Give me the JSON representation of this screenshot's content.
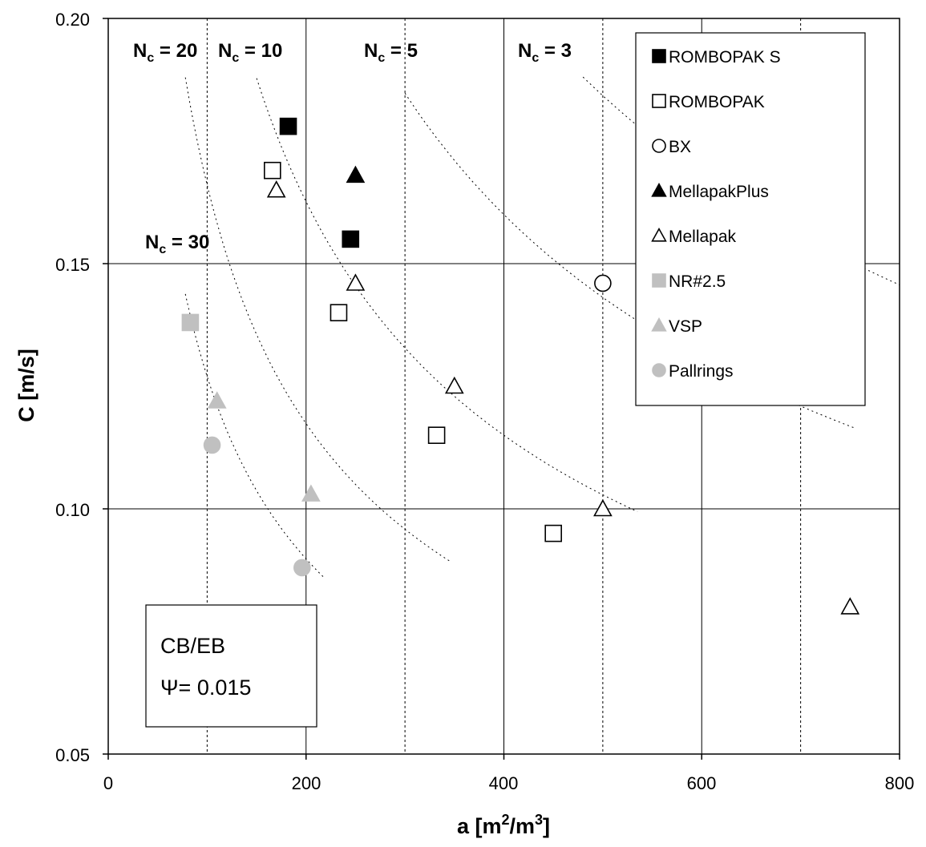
{
  "chart_data": {
    "type": "scatter",
    "xlabel": "a [m2/m3]",
    "ylabel": "C [m/s]",
    "xlim": [
      0,
      800
    ],
    "ylim": [
      0.05,
      0.2
    ],
    "x_ticks": [
      "0",
      "200",
      "400",
      "600",
      "800"
    ],
    "y_ticks": [
      "0.05",
      "0.10",
      "0.15",
      "0.20"
    ],
    "grid": "major gridlines at x=200,400,600 and y=0.10,0.15",
    "legend_position": "top-right",
    "series": [
      {
        "name": "ROMBOPAK S",
        "marker": "square",
        "filled": true,
        "color": "#000000",
        "points": [
          [
            182,
            0.178
          ],
          [
            245,
            0.155
          ]
        ]
      },
      {
        "name": "ROMBOPAK",
        "marker": "square",
        "filled": false,
        "color": "#000000",
        "points": [
          [
            166,
            0.169
          ],
          [
            233,
            0.14
          ],
          [
            332,
            0.115
          ],
          [
            450,
            0.095
          ]
        ]
      },
      {
        "name": "BX",
        "marker": "circle",
        "filled": false,
        "color": "#000000",
        "points": [
          [
            500,
            0.146
          ]
        ]
      },
      {
        "name": "MellapakPlus",
        "marker": "triangle",
        "filled": true,
        "color": "#000000",
        "points": [
          [
            250,
            0.168
          ]
        ]
      },
      {
        "name": "Mellapak",
        "marker": "triangle",
        "filled": false,
        "color": "#000000",
        "points": [
          [
            170,
            0.165
          ],
          [
            250,
            0.146
          ],
          [
            350,
            0.125
          ],
          [
            500,
            0.1
          ],
          [
            750,
            0.08
          ]
        ]
      },
      {
        "name": "NR#2.5",
        "marker": "square",
        "filled": true,
        "color": "#c0c0c0",
        "points": [
          [
            83,
            0.138
          ]
        ]
      },
      {
        "name": "VSP",
        "marker": "triangle",
        "filled": true,
        "color": "#c0c0c0",
        "points": [
          [
            110,
            0.122
          ],
          [
            205,
            0.103
          ]
        ]
      },
      {
        "name": "Pallrings",
        "marker": "circle",
        "filled": true,
        "color": "#c0c0c0",
        "points": [
          [
            105,
            0.113
          ],
          [
            196,
            0.088
          ]
        ]
      }
    ],
    "vertical_dotted_lines_x": [
      100,
      300,
      500,
      700
    ],
    "nc_curves": [
      {
        "label": "Nc = 30",
        "x_range": [
          78,
          218
        ]
      },
      {
        "label": "Nc = 20",
        "x_range": [
          78,
          345
        ]
      },
      {
        "label": "Nc = 10",
        "x_range": [
          150,
          535
        ]
      },
      {
        "label": "Nc = 5",
        "x_range": [
          300,
          755
        ]
      },
      {
        "label": "Nc = 3",
        "x_range": [
          480,
          800
        ]
      }
    ],
    "nc_labels": {
      "nc20": {
        "main": "N",
        "sub": "c",
        "rest": " = 20"
      },
      "nc10": {
        "main": "N",
        "sub": "c",
        "rest": " = 10"
      },
      "nc5": {
        "main": "N",
        "sub": "c",
        "rest": " = 5"
      },
      "nc3": {
        "main": "N",
        "sub": "c",
        "rest": " = 3"
      },
      "nc30": {
        "main": "N",
        "sub": "c",
        "rest": " = 30"
      }
    },
    "axis_titles": {
      "x_main": "a [m",
      "x_sup1": "2",
      "x_mid": "/m",
      "x_sup2": "3",
      "x_end": "]",
      "y": "C [m/s]"
    },
    "annotation": {
      "line1": "CB/EB",
      "line2": "Ψ= 0.015"
    }
  }
}
